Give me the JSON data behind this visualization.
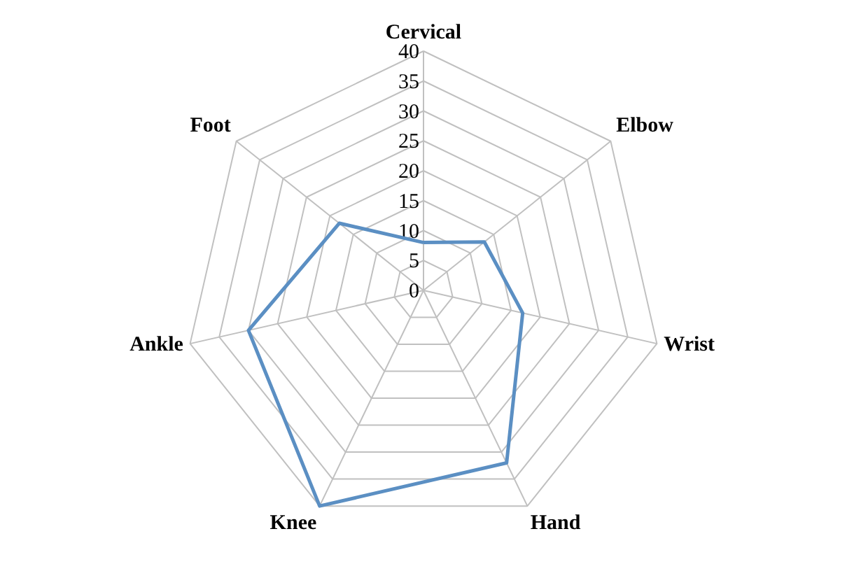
{
  "chart_data": {
    "type": "radar",
    "categories": [
      "Cervical",
      "Elbow",
      "Wrist",
      "Hand",
      "Knee",
      "Ankle",
      "Foot"
    ],
    "series": [
      {
        "color": "#5b8fc3",
        "values": [
          8,
          13,
          17,
          32,
          40,
          30,
          18
        ]
      }
    ],
    "ylim": [
      0,
      40
    ],
    "yticks": [
      0,
      5,
      10,
      15,
      20,
      25,
      30,
      35,
      40
    ],
    "grid": true
  }
}
